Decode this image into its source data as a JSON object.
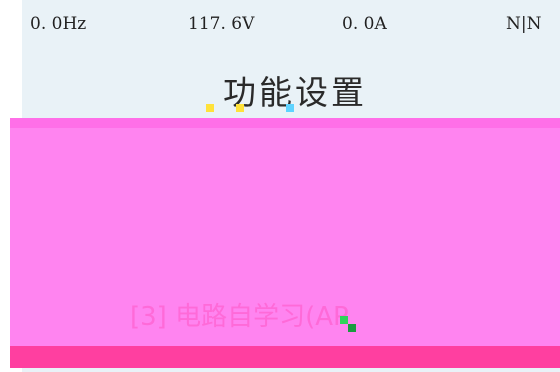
{
  "status": {
    "frequency": "0. 0Hz",
    "voltage": "117. 6V",
    "current": "0. 0A",
    "mode": "N|N"
  },
  "title": "功能设置",
  "menu": {
    "items": [
      {
        "label": "",
        "active": false
      },
      {
        "label": "",
        "active": false
      },
      {
        "label": "[3] 电路自学习(AP",
        "active": true
      }
    ]
  },
  "colors": {
    "screen_bg": "#e9f2f7",
    "menu_panel": "#ff84f0",
    "highlight_strip": "#ff3fa0"
  }
}
